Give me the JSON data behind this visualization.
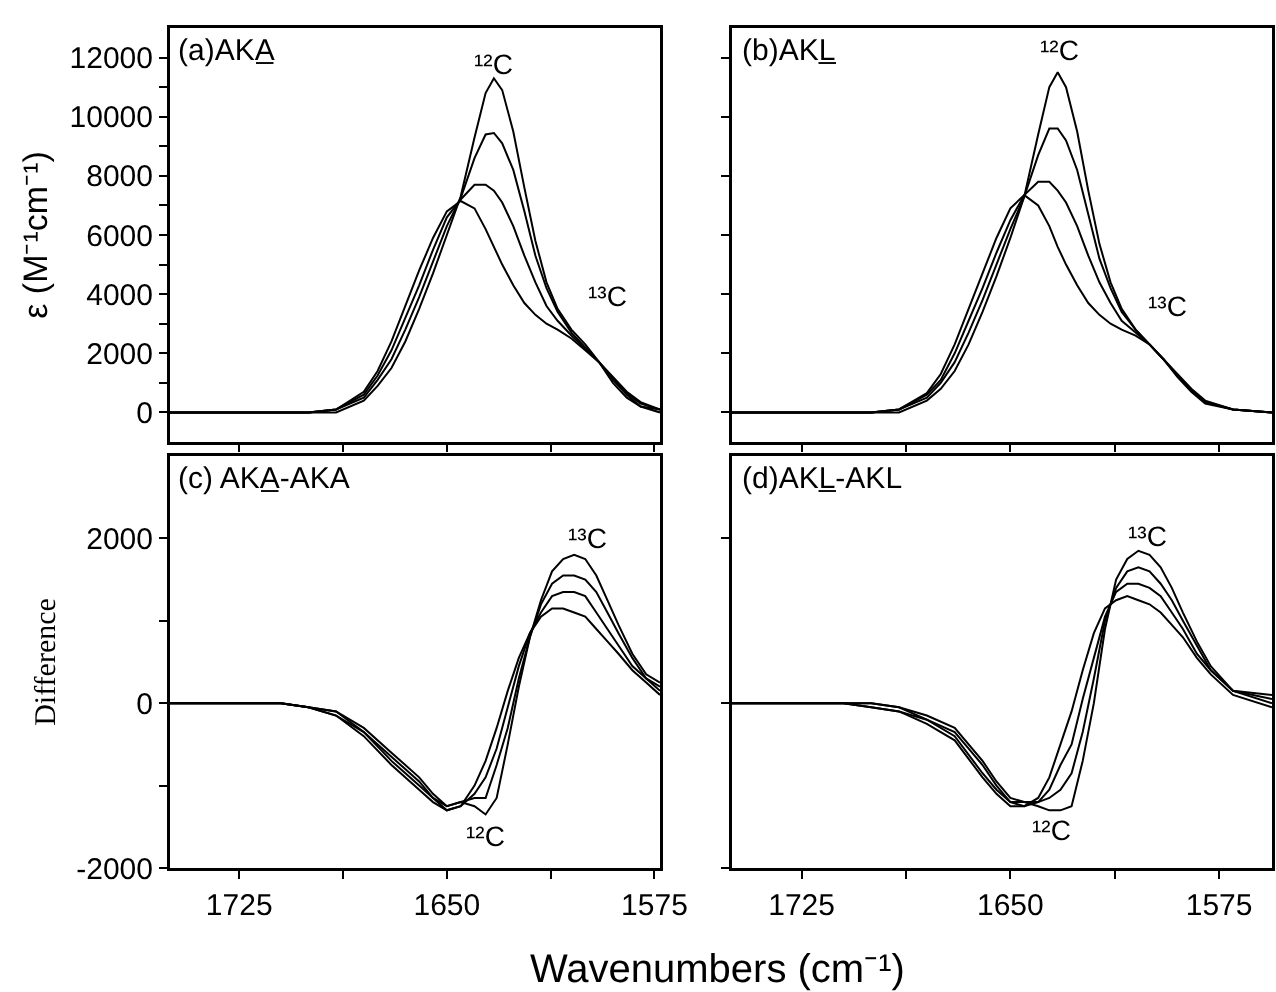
{
  "chart_data": [
    {
      "type": "line",
      "title": "(a)AKA̲",
      "ylabel": "ε (M⁻¹cm⁻¹)",
      "x": [
        1750,
        1720,
        1700,
        1690,
        1680,
        1675,
        1670,
        1665,
        1660,
        1655,
        1650,
        1645,
        1640,
        1636,
        1633,
        1630,
        1626,
        1622,
        1618,
        1614,
        1610,
        1605,
        1600,
        1595,
        1590,
        1585,
        1580,
        1573
      ],
      "series": [
        {
          "color": "#000000",
          "values": [
            0,
            0,
            0,
            0,
            400,
            900,
            1500,
            2400,
            3500,
            4700,
            6000,
            7300,
            9300,
            10800,
            11300,
            10900,
            9500,
            7600,
            5800,
            4400,
            3500,
            2800,
            2300,
            1700,
            1000,
            500,
            200,
            0
          ]
        },
        {
          "color": "#000000",
          "values": [
            0,
            0,
            0,
            100,
            500,
            1100,
            1800,
            2800,
            3900,
            5100,
            6300,
            7250,
            8600,
            9400,
            9450,
            9100,
            8200,
            6800,
            5300,
            4200,
            3400,
            2700,
            2200,
            1700,
            1100,
            600,
            200,
            100
          ]
        },
        {
          "color": "#000000",
          "values": [
            0,
            0,
            0,
            100,
            600,
            1250,
            2100,
            3200,
            4300,
            5500,
            6600,
            7200,
            7700,
            7700,
            7500,
            7100,
            6300,
            5300,
            4400,
            3600,
            3100,
            2600,
            2150,
            1700,
            1150,
            650,
            300,
            100
          ]
        },
        {
          "color": "#000000",
          "values": [
            0,
            0,
            0,
            100,
            700,
            1400,
            2400,
            3600,
            4800,
            5900,
            6800,
            7150,
            6900,
            6200,
            5600,
            5000,
            4300,
            3700,
            3300,
            3000,
            2800,
            2500,
            2100,
            1700,
            1200,
            700,
            350,
            100
          ]
        }
      ],
      "xlim": [
        1750,
        1573
      ],
      "xticks": [
        {
          "value": 1725,
          "label": null
        },
        {
          "value": 1687.5,
          "label": null
        },
        {
          "value": 1650,
          "label": null
        },
        {
          "value": 1612.5,
          "label": null
        },
        {
          "value": 1575,
          "label": null
        }
      ],
      "ylim": [
        -1000,
        13000
      ],
      "yticks": [
        0,
        {
          "value": 1000,
          "label": null
        },
        2000,
        {
          "value": 3000,
          "label": null
        },
        4000,
        {
          "value": 5000,
          "label": null
        },
        6000,
        {
          "value": 7000,
          "label": null
        },
        8000,
        {
          "value": 9000,
          "label": null
        },
        10000,
        {
          "value": 11000,
          "label": null
        },
        12000
      ],
      "tick_labels": "y",
      "grid": false,
      "marker": "none",
      "line_style": "solid",
      "annotations": [
        "¹²C",
        "¹³C"
      ]
    },
    {
      "type": "line",
      "title": "(b)AKL̲",
      "x": [
        1750,
        1720,
        1700,
        1690,
        1680,
        1675,
        1670,
        1665,
        1660,
        1655,
        1650,
        1645,
        1640,
        1636,
        1633,
        1630,
        1626,
        1622,
        1618,
        1614,
        1610,
        1605,
        1600,
        1595,
        1590,
        1585,
        1580,
        1570,
        1556
      ],
      "series": [
        {
          "color": "#000000",
          "values": [
            0,
            0,
            0,
            0,
            400,
            800,
            1400,
            2300,
            3400,
            4600,
            5900,
            7300,
            9400,
            11000,
            11500,
            11000,
            9500,
            7500,
            5700,
            4400,
            3500,
            2800,
            2300,
            1800,
            1200,
            700,
            300,
            100,
            0
          ]
        },
        {
          "color": "#000000",
          "values": [
            0,
            0,
            0,
            100,
            500,
            1000,
            1700,
            2700,
            3800,
            5000,
            6200,
            7300,
            8700,
            9600,
            9600,
            9200,
            8200,
            6700,
            5200,
            4200,
            3400,
            2800,
            2300,
            1800,
            1250,
            750,
            350,
            100,
            0
          ]
        },
        {
          "color": "#000000",
          "values": [
            0,
            0,
            0,
            100,
            600,
            1100,
            2000,
            3100,
            4200,
            5400,
            6500,
            7350,
            7800,
            7800,
            7500,
            7100,
            6300,
            5300,
            4400,
            3700,
            3100,
            2700,
            2300,
            1800,
            1250,
            750,
            350,
            100,
            0
          ]
        },
        {
          "color": "#000000",
          "values": [
            0,
            0,
            0,
            100,
            650,
            1300,
            2300,
            3500,
            4700,
            5900,
            6900,
            7350,
            7000,
            6300,
            5600,
            5000,
            4300,
            3700,
            3300,
            3000,
            2800,
            2600,
            2300,
            1800,
            1300,
            800,
            400,
            100,
            0
          ]
        }
      ],
      "xlim": [
        1750,
        1556
      ],
      "xticks": [
        {
          "value": 1725,
          "label": null
        },
        {
          "value": 1687.5,
          "label": null
        },
        {
          "value": 1650,
          "label": null
        },
        {
          "value": 1612.5,
          "label": null
        },
        {
          "value": 1575,
          "label": null
        }
      ],
      "ylim": [
        -1000,
        13000
      ],
      "yticks": [
        {
          "value": 0,
          "label": null
        },
        {
          "value": 2000,
          "label": null
        },
        {
          "value": 4000,
          "label": null
        },
        {
          "value": 6000,
          "label": null
        },
        {
          "value": 8000,
          "label": null
        },
        {
          "value": 10000,
          "label": null
        },
        {
          "value": 12000,
          "label": null
        }
      ],
      "tick_labels": false,
      "grid": false,
      "marker": "none",
      "line_style": "solid",
      "annotations": [
        "¹²C",
        "¹³C"
      ]
    },
    {
      "type": "line",
      "title": "(c) AKA̲-AKA",
      "ylabel": "Difference",
      "xlabel": "Wavenumbers (cm⁻¹)",
      "x": [
        1750,
        1740,
        1725,
        1710,
        1700,
        1690,
        1680,
        1670,
        1660,
        1655,
        1650,
        1645,
        1640,
        1636,
        1632,
        1628,
        1624,
        1620,
        1616,
        1612,
        1608,
        1604,
        1600,
        1596,
        1592,
        1588,
        1583,
        1578,
        1573
      ],
      "series": [
        {
          "color": "#000000",
          "values": [
            0,
            0,
            0,
            0,
            -50,
            -100,
            -300,
            -600,
            -900,
            -1100,
            -1250,
            -1200,
            -1250,
            -1350,
            -1150,
            -500,
            200,
            800,
            1250,
            1600,
            1750,
            1800,
            1750,
            1550,
            1250,
            950,
            600,
            350,
            250
          ]
        },
        {
          "color": "#000000",
          "values": [
            0,
            0,
            0,
            0,
            -50,
            -100,
            -350,
            -650,
            -950,
            -1150,
            -1250,
            -1200,
            -1150,
            -1150,
            -750,
            -300,
            300,
            800,
            1200,
            1450,
            1550,
            1550,
            1500,
            1350,
            1100,
            850,
            550,
            300,
            200
          ]
        },
        {
          "color": "#000000",
          "values": [
            0,
            0,
            0,
            0,
            -50,
            -150,
            -350,
            -700,
            -1000,
            -1150,
            -1300,
            -1250,
            -1100,
            -900,
            -550,
            -50,
            450,
            850,
            1100,
            1300,
            1350,
            1350,
            1300,
            1100,
            900,
            700,
            450,
            300,
            150
          ]
        },
        {
          "color": "#000000",
          "values": [
            0,
            0,
            0,
            0,
            -50,
            -150,
            -400,
            -750,
            -1050,
            -1200,
            -1300,
            -1250,
            -1000,
            -700,
            -300,
            150,
            550,
            850,
            1050,
            1150,
            1150,
            1100,
            1050,
            900,
            750,
            600,
            400,
            250,
            100
          ]
        }
      ],
      "xlim": [
        1750,
        1573
      ],
      "xticks": [
        1725,
        {
          "value": 1687.5,
          "label": null
        },
        1650,
        {
          "value": 1612.5,
          "label": null
        },
        1575
      ],
      "ylim": [
        -2000,
        3000
      ],
      "yticks": [
        -2000,
        {
          "value": -1000,
          "label": null
        },
        0,
        {
          "value": 1000,
          "label": null
        },
        2000
      ],
      "grid": false,
      "marker": "none",
      "line_style": "solid",
      "annotations": [
        "¹³C",
        "¹²C"
      ]
    },
    {
      "type": "line",
      "title": "(d)AKL̲-AKL",
      "x": [
        1750,
        1740,
        1725,
        1710,
        1700,
        1690,
        1680,
        1670,
        1660,
        1655,
        1650,
        1645,
        1640,
        1636,
        1632,
        1628,
        1624,
        1620,
        1616,
        1612,
        1608,
        1604,
        1600,
        1596,
        1592,
        1588,
        1583,
        1578,
        1570,
        1556
      ],
      "series": [
        {
          "color": "#000000",
          "values": [
            0,
            0,
            0,
            0,
            0,
            -50,
            -150,
            -300,
            -700,
            -950,
            -1150,
            -1200,
            -1250,
            -1300,
            -1300,
            -1250,
            -700,
            0,
            900,
            1500,
            1750,
            1850,
            1800,
            1650,
            1400,
            1100,
            750,
            450,
            150,
            100
          ]
        },
        {
          "color": "#000000",
          "values": [
            0,
            0,
            0,
            0,
            0,
            -50,
            -200,
            -350,
            -750,
            -1000,
            -1200,
            -1200,
            -1200,
            -1150,
            -1050,
            -850,
            -350,
            300,
            1000,
            1400,
            1600,
            1650,
            1600,
            1450,
            1250,
            1000,
            700,
            400,
            150,
            50
          ]
        },
        {
          "color": "#000000",
          "values": [
            0,
            0,
            0,
            0,
            -50,
            -100,
            -200,
            -400,
            -850,
            -1050,
            -1200,
            -1250,
            -1200,
            -1050,
            -750,
            -500,
            50,
            550,
            1050,
            1350,
            1450,
            1450,
            1400,
            1300,
            1100,
            900,
            600,
            400,
            150,
            0
          ]
        },
        {
          "color": "#000000",
          "values": [
            0,
            0,
            0,
            0,
            -50,
            -100,
            -250,
            -450,
            -900,
            -1100,
            -1250,
            -1250,
            -1150,
            -900,
            -500,
            -100,
            400,
            850,
            1150,
            1250,
            1300,
            1250,
            1200,
            1100,
            950,
            800,
            550,
            350,
            100,
            -50
          ]
        }
      ],
      "xlim": [
        1750,
        1556
      ],
      "xticks": [
        1725,
        {
          "value": 1687.5,
          "label": null
        },
        1650,
        {
          "value": 1612.5,
          "label": null
        },
        1575
      ],
      "ylim": [
        -2000,
        3000
      ],
      "yticks": [
        {
          "value": -2000,
          "label": null
        },
        {
          "value": 0,
          "label": null
        },
        {
          "value": 2000,
          "label": null
        }
      ],
      "tick_labels": "x",
      "grid": false,
      "marker": "none",
      "line_style": "solid",
      "annotations": [
        "¹³C",
        "¹²C"
      ]
    }
  ]
}
